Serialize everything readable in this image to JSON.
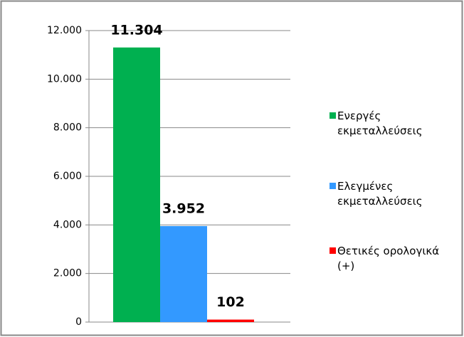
{
  "chart_data": {
    "type": "bar",
    "categories": [
      null
    ],
    "series": [
      {
        "name": "Ενεργές εκμεταλλεύσεις",
        "color": "#00b050",
        "values": [
          11304
        ],
        "value_labels": [
          "11.304"
        ]
      },
      {
        "name": "Ελεγμένες εκμεταλλεύσεις",
        "color": "#3399ff",
        "values": [
          3952
        ],
        "value_labels": [
          "3.952"
        ]
      },
      {
        "name": "Θετικές ορολογικά (+)",
        "color": "#ff0000",
        "values": [
          102
        ],
        "value_labels": [
          "102"
        ]
      }
    ],
    "ylim": [
      0,
      12000
    ],
    "yticks": [
      0,
      {
        "value": 2000,
        "label": "2.000"
      },
      {
        "value": 4000,
        "label": "4.000"
      },
      {
        "value": 6000,
        "label": "6.000"
      },
      {
        "value": 8000,
        "label": "8.000"
      },
      {
        "value": 10000,
        "label": "10.000"
      },
      {
        "value": 12000,
        "label": "12.000"
      }
    ],
    "grid": true,
    "legend": "right"
  }
}
